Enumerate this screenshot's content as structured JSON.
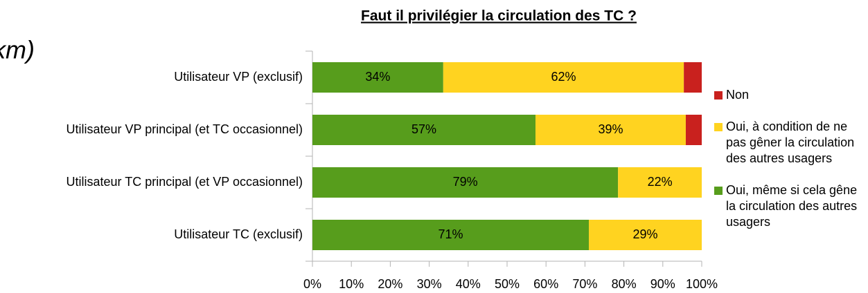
{
  "chart_data": {
    "type": "stacked-bar-horizontal",
    "title": "Faut il privilégier la circulation des TC ?",
    "annotations": [
      "km)"
    ],
    "categories": [
      "Utilisateur VP (exclusif)",
      "Utilisateur VP principal (et TC occasionnel)",
      "Utilisateur TC principal (et VP occasionnel)",
      "Utilisateur TC (exclusif)"
    ],
    "series": [
      {
        "name": "Oui, même si cela gêne la circulation des autres usagers",
        "color": "#579d1c",
        "values": [
          33.6,
          57.3,
          78.5,
          71
        ],
        "value_labels": [
          "34%",
          "57%",
          "79%",
          "71%"
        ]
      },
      {
        "name": "Oui, à condition de ne pas gêner la circulation des autres usagers",
        "color": "#ffd320",
        "values": [
          61.8,
          38.6,
          21.5,
          29
        ],
        "value_labels": [
          "62%",
          "39%",
          "22%",
          "29%"
        ]
      },
      {
        "name": "Non",
        "color": "#c9211e",
        "values": [
          4.6,
          4.1,
          0,
          0
        ]
      }
    ],
    "xlim": [
      0,
      100
    ],
    "xticks": [
      {
        "value": 0,
        "label": "0%"
      },
      {
        "value": 10,
        "label": "10%"
      },
      {
        "value": 20,
        "label": "20%"
      },
      {
        "value": 30,
        "label": "30%"
      },
      {
        "value": 40,
        "label": "40%"
      },
      {
        "value": 50,
        "label": "50%"
      },
      {
        "value": 60,
        "label": "60%"
      },
      {
        "value": 70,
        "label": "70%"
      },
      {
        "value": 80,
        "label": "80%"
      },
      {
        "value": 90,
        "label": "90%"
      },
      {
        "value": 100,
        "label": "100%"
      }
    ],
    "legend": "right"
  }
}
